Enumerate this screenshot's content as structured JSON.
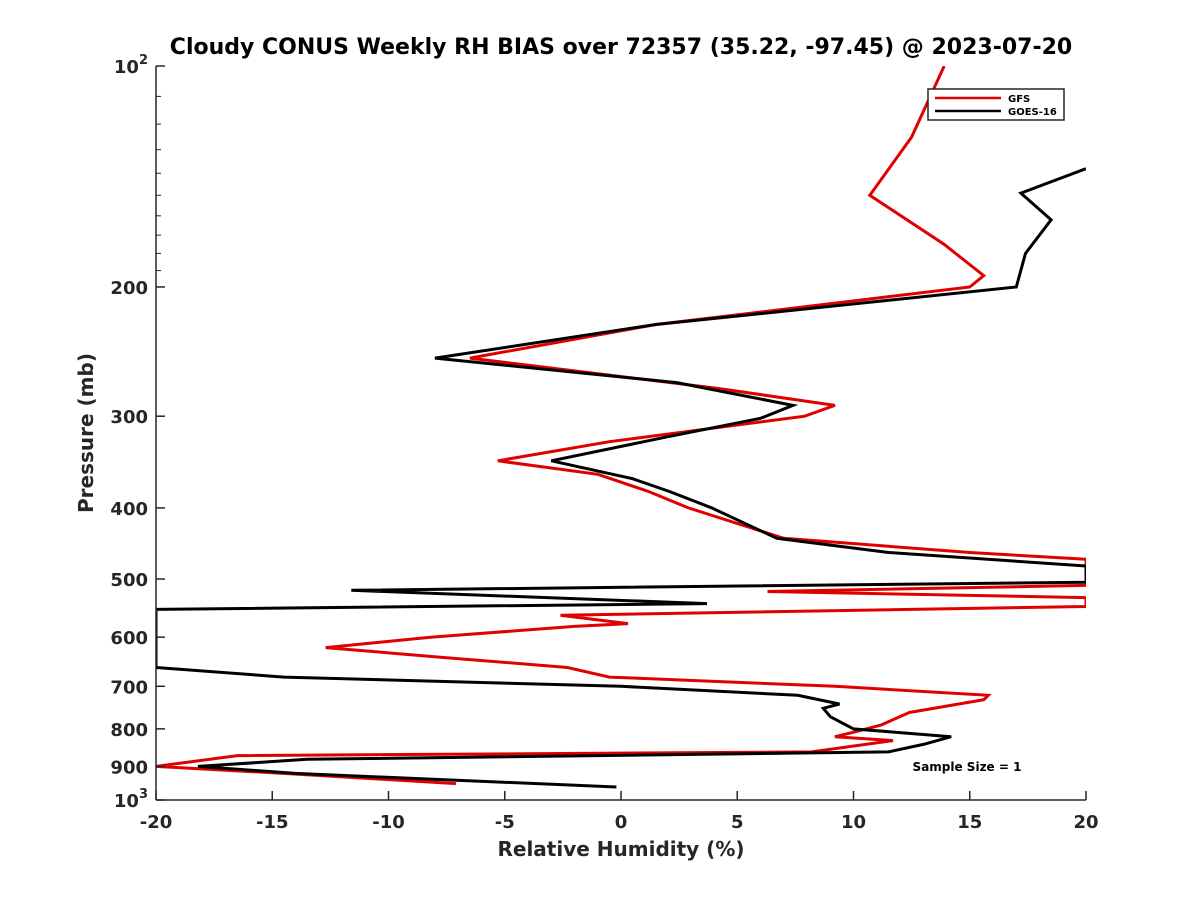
{
  "chart_data": {
    "type": "line",
    "title": "Cloudy CONUS Weekly RH BIAS over 72357 (35.22, -97.45) @ 2023-07-20",
    "xlabel": "Relative Humidity (%)",
    "ylabel": "Pressure (mb)",
    "xlim": [
      -20,
      20
    ],
    "ylim": [
      100,
      1000
    ],
    "yscale": "log",
    "y_reversed": true,
    "grid": false,
    "legend_position": "top-right",
    "x_ticks": [
      -20,
      -15,
      -10,
      -5,
      0,
      5,
      10,
      15,
      20
    ],
    "y_ticks": [
      {
        "value": 100,
        "label": "10",
        "sup": "2"
      },
      {
        "value": 200,
        "label": "200",
        "sup": ""
      },
      {
        "value": 300,
        "label": "300",
        "sup": ""
      },
      {
        "value": 400,
        "label": "400",
        "sup": ""
      },
      {
        "value": 500,
        "label": "500",
        "sup": ""
      },
      {
        "value": 600,
        "label": "600",
        "sup": ""
      },
      {
        "value": 700,
        "label": "700",
        "sup": ""
      },
      {
        "value": 800,
        "label": "800",
        "sup": ""
      },
      {
        "value": 900,
        "label": "900",
        "sup": ""
      },
      {
        "value": 1000,
        "label": "10",
        "sup": "3"
      }
    ],
    "annotation": "Sample Size = 1",
    "series": [
      {
        "name": "GFS",
        "color": "#e00000",
        "points": [
          [
            13.9,
            100
          ],
          [
            12.5,
            125
          ],
          [
            10.7,
            150
          ],
          [
            13.9,
            175
          ],
          [
            15.6,
            193
          ],
          [
            15.0,
            200
          ],
          [
            1.5,
            225
          ],
          [
            -6.5,
            250
          ],
          [
            4.2,
            275
          ],
          [
            9.2,
            290
          ],
          [
            7.9,
            300
          ],
          [
            -0.5,
            325
          ],
          [
            -5.3,
            345
          ],
          [
            -1.0,
            360
          ],
          [
            1.2,
            380
          ],
          [
            2.9,
            400
          ],
          [
            7.0,
            440
          ],
          [
            15.0,
            460
          ],
          [
            20.0,
            470
          ],
          [
            20.0,
            510
          ],
          [
            6.3,
            520
          ],
          [
            20.0,
            530
          ],
          [
            20.0,
            545
          ],
          [
            -2.6,
            560
          ],
          [
            0.3,
            575
          ],
          [
            -2.0,
            580
          ],
          [
            -8.2,
            600
          ],
          [
            -12.7,
            620
          ],
          [
            -7.5,
            640
          ],
          [
            -2.3,
            660
          ],
          [
            -0.5,
            680
          ],
          [
            9.2,
            700
          ],
          [
            15.8,
            720
          ],
          [
            15.6,
            730
          ],
          [
            12.4,
            760
          ],
          [
            11.2,
            790
          ],
          [
            9.9,
            810
          ],
          [
            9.2,
            820
          ],
          [
            11.7,
            830
          ],
          [
            8.2,
            860
          ],
          [
            -16.5,
            870
          ],
          [
            -20.0,
            900
          ],
          [
            -14.5,
            920
          ],
          [
            -7.1,
            950
          ]
        ]
      },
      {
        "name": "GOES-16",
        "color": "#000000",
        "points": [
          [
            20.0,
            138
          ],
          [
            17.2,
            149
          ],
          [
            18.5,
            162
          ],
          [
            17.4,
            180
          ],
          [
            17.0,
            200
          ],
          [
            1.5,
            225
          ],
          [
            -8.0,
            250
          ],
          [
            2.4,
            270
          ],
          [
            7.4,
            290
          ],
          [
            6.0,
            302
          ],
          [
            2.0,
            320
          ],
          [
            -3.0,
            345
          ],
          [
            0.5,
            365
          ],
          [
            2.1,
            380
          ],
          [
            3.9,
            400
          ],
          [
            6.7,
            440
          ],
          [
            11.5,
            460
          ],
          [
            20.0,
            480
          ],
          [
            20.0,
            505
          ],
          [
            -11.6,
            518
          ],
          [
            3.7,
            540
          ],
          [
            -20.0,
            550
          ],
          [
            -20.0,
            660
          ],
          [
            -14.5,
            680
          ],
          [
            0.0,
            700
          ],
          [
            7.6,
            720
          ],
          [
            9.4,
            740
          ],
          [
            8.7,
            750
          ],
          [
            9.0,
            770
          ],
          [
            10.0,
            800
          ],
          [
            14.2,
            820
          ],
          [
            13.0,
            840
          ],
          [
            11.5,
            860
          ],
          [
            -13.5,
            880
          ],
          [
            -18.2,
            900
          ],
          [
            -14.0,
            920
          ],
          [
            -0.2,
            960
          ]
        ]
      }
    ]
  }
}
